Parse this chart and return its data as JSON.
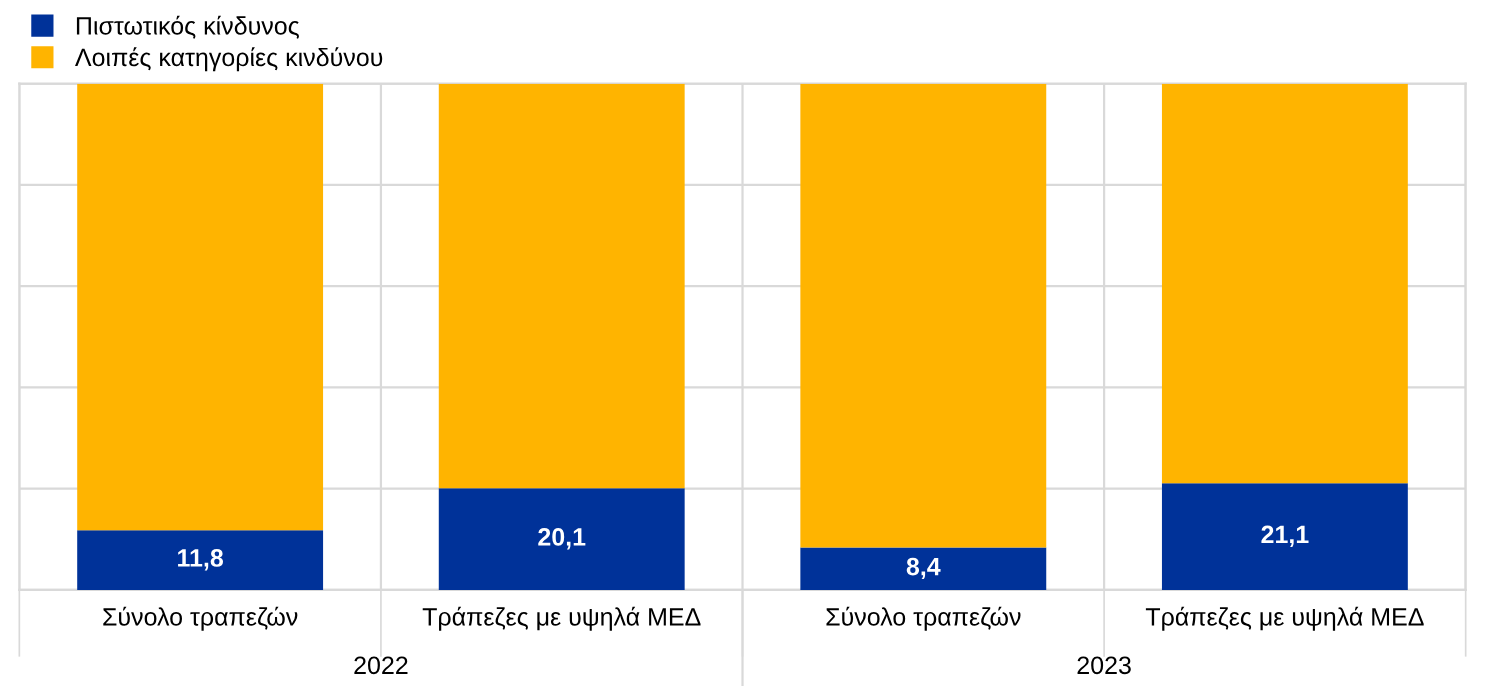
{
  "chart_data": {
    "type": "bar",
    "stacked": true,
    "categories": [
      "Σύνολο τραπεζών",
      "Τράπεζες με υψηλά ΜΕΔ",
      "Σύνολο τραπεζών",
      "Τράπεζες με υψηλά ΜΕΔ"
    ],
    "series": [
      {
        "name": "Πιστωτικός κίνδυνος",
        "color": "#003299",
        "values": [
          11.8,
          20.1,
          8.4,
          21.1
        ],
        "value_labels": [
          "11,8",
          "20,1",
          "8,4",
          "21,1"
        ]
      },
      {
        "name": "Λοιπές κατηγορίες κινδύνου",
        "color": "#ffb400",
        "values": [
          88.2,
          79.9,
          91.6,
          78.9
        ]
      }
    ],
    "ylim": [
      0,
      100
    ],
    "yticks": [
      {
        "value": 0,
        "label": null
      },
      {
        "value": 20,
        "label": null
      },
      {
        "value": 40,
        "label": null
      },
      {
        "value": 60,
        "label": null
      },
      {
        "value": 80,
        "label": null
      },
      {
        "value": 100,
        "label": null
      }
    ],
    "tick_labels": "x",
    "grid": true,
    "legend": "top left",
    "annotations": [
      "2022",
      "2023"
    ]
  }
}
